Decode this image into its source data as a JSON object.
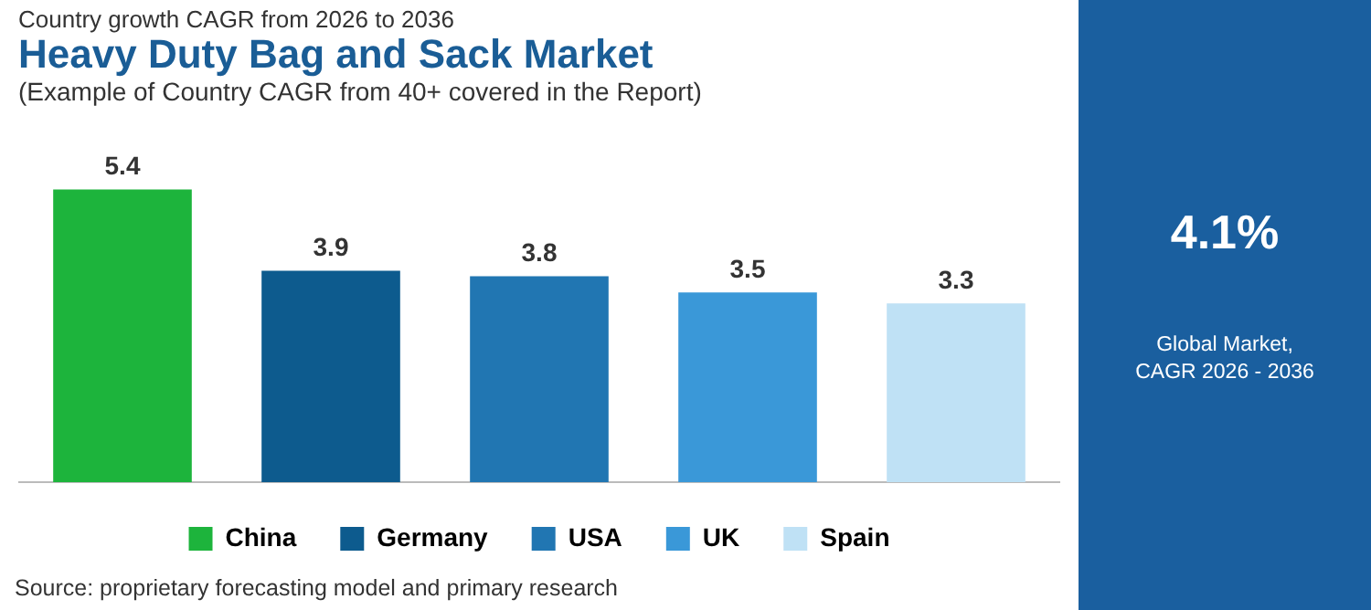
{
  "chart_data": [
    {
      "type": "bar",
      "title": "Heavy Duty Bag and Sack Market",
      "subtitle": "(Example of Country CAGR from 40+ covered in the Report)",
      "annotations": [
        "Country growth CAGR from 2026 to 2036",
        "Source: proprietary forecasting model and primary research"
      ],
      "categories": [
        null,
        null,
        null,
        null,
        null
      ],
      "series": [
        {
          "name": "China",
          "color": "#1db43c",
          "values": [
            5.4,
            null,
            null,
            null,
            null
          ]
        },
        {
          "name": "Germany",
          "color": "#0d5b8e",
          "values": [
            null,
            3.9,
            null,
            null,
            null
          ]
        },
        {
          "name": "USA",
          "color": "#2176b2",
          "values": [
            null,
            null,
            3.8,
            null,
            null
          ]
        },
        {
          "name": "UK",
          "color": "#3a98d8",
          "values": [
            null,
            null,
            null,
            3.5,
            null
          ]
        },
        {
          "name": "Spain",
          "color": "#bfe1f5",
          "values": [
            null,
            null,
            null,
            null,
            3.3
          ]
        }
      ],
      "stacked": true,
      "data_labels": true,
      "legend": "bottom",
      "tick_labels": false,
      "grid": false
    },
    {
      "type": "other",
      "annotations": [
        "4.1%",
        "Global Market, CAGR 2026 - 2036"
      ]
    }
  ]
}
